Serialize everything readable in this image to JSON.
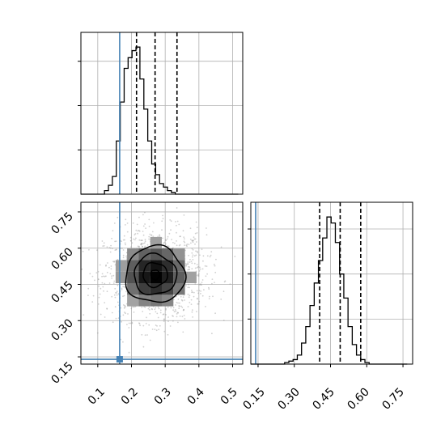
{
  "chart_data": {
    "type": "corner",
    "grid": true,
    "colors": {
      "truth": "#4682b4",
      "line": "#000000",
      "grid": "#b0b0b0",
      "points": "#9a9a9a"
    },
    "truths": {
      "x": 0.165,
      "y": 0.14
    },
    "quantiles": {
      "x": [
        0.215,
        0.27,
        0.335
      ],
      "y": [
        0.405,
        0.49,
        0.575
      ]
    },
    "histograms": [
      {
        "name": "x marginal",
        "xlim": [
          0.05,
          0.53
        ],
        "bin_edges": [
          0.05,
          0.0617,
          0.0733,
          0.085,
          0.0967,
          0.1083,
          0.12,
          0.1317,
          0.1433,
          0.155,
          0.1667,
          0.1783,
          0.19,
          0.2017,
          0.2133,
          0.225,
          0.2367,
          0.2483,
          0.26,
          0.2717,
          0.2833,
          0.295,
          0.3067,
          0.3183,
          0.33,
          0.3417,
          0.3533,
          0.365,
          0.3767,
          0.3883,
          0.4,
          0.4117,
          0.4233,
          0.435,
          0.4467,
          0.4583,
          0.47,
          0.4817,
          0.4933,
          0.505,
          0.5167
        ],
        "counts": [
          0,
          0,
          0,
          0,
          0,
          0,
          2,
          5,
          10,
          30,
          52,
          71,
          77,
          81,
          83,
          65,
          48,
          30,
          17,
          11,
          6,
          4,
          2,
          1,
          0,
          0,
          0,
          0,
          0,
          0,
          0,
          0,
          0,
          0,
          0,
          0,
          0,
          0,
          0,
          0
        ]
      },
      {
        "name": "y marginal",
        "xlim": [
          0.12,
          0.79
        ],
        "bin_edges": [
          0.12,
          0.1375,
          0.155,
          0.1725,
          0.19,
          0.2075,
          0.225,
          0.2425,
          0.26,
          0.2775,
          0.295,
          0.3125,
          0.33,
          0.3475,
          0.365,
          0.3825,
          0.4,
          0.4175,
          0.435,
          0.4525,
          0.47,
          0.4875,
          0.505,
          0.5225,
          0.54,
          0.5575,
          0.575,
          0.5925,
          0.61,
          0.6275,
          0.645,
          0.6625,
          0.68,
          0.6975,
          0.715,
          0.7325,
          0.75,
          0.7675
        ],
        "counts": [
          0,
          0,
          0,
          0,
          0,
          0,
          0,
          0,
          1,
          2,
          3,
          6,
          14,
          25,
          39,
          54,
          69,
          84,
          98,
          94,
          81,
          60,
          44,
          25,
          13,
          6,
          3,
          1,
          0,
          0,
          0,
          0,
          0,
          0,
          0,
          0,
          0
        ]
      }
    ],
    "hist2d": {
      "xlim": [
        0.05,
        0.53
      ],
      "ylim": [
        0.12,
        0.79
      ],
      "center": [
        0.27,
        0.49
      ],
      "sigma": [
        0.075,
        0.095
      ],
      "contour_levels": [
        {
          "rx": 0.088,
          "ry": 0.117
        },
        {
          "rx": 0.063,
          "ry": 0.084
        },
        {
          "rx": 0.036,
          "ry": 0.05
        },
        {
          "rx": 0.013,
          "ry": 0.02
        }
      ]
    },
    "x_ticks": [
      "0.1",
      "0.2",
      "0.3",
      "0.4",
      "0.5"
    ],
    "y_ticks": [
      "0.15",
      "0.30",
      "0.45",
      "0.60",
      "0.75"
    ]
  }
}
